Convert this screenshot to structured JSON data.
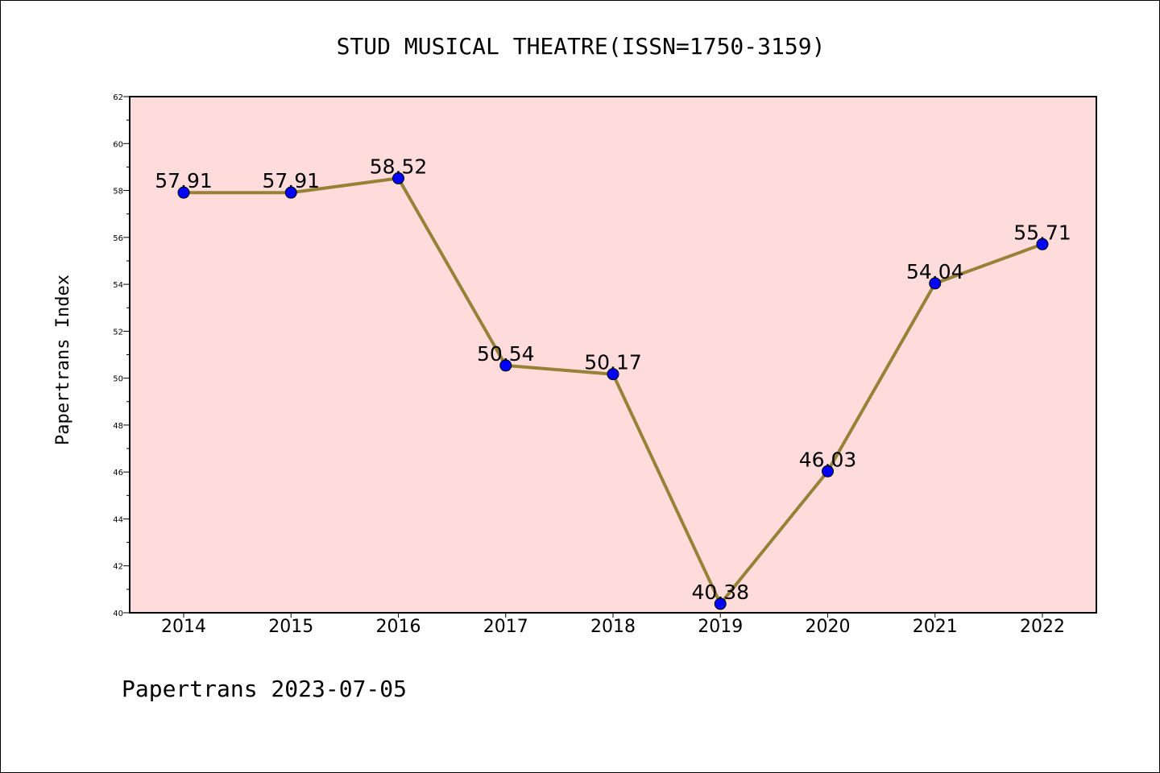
{
  "chart_data": {
    "type": "line",
    "title": "STUD MUSICAL THEATRE(ISSN=1750-3159)",
    "ylabel": "Papertrans Index",
    "xlabel": "",
    "categories": [
      "2014",
      "2015",
      "2016",
      "2017",
      "2018",
      "2019",
      "2020",
      "2021",
      "2022"
    ],
    "values": [
      57.91,
      57.91,
      58.52,
      50.54,
      50.17,
      40.38,
      46.03,
      54.04,
      55.71
    ],
    "data_labels": [
      "57.91",
      "57.91",
      "58.52",
      "50.54",
      "50.17",
      "40.38",
      "46.03",
      "54.04",
      "55.71"
    ],
    "ylim": [
      40,
      62
    ],
    "yticks": [
      "40",
      "42",
      "44",
      "46",
      "48",
      "50",
      "52",
      "54",
      "56",
      "58",
      "60",
      "62"
    ],
    "grid": false,
    "colors": {
      "plot_background": "#ffdcdc",
      "line": "#968237",
      "marker": "#0000ff"
    }
  },
  "footer": "Papertrans 2023-07-05"
}
